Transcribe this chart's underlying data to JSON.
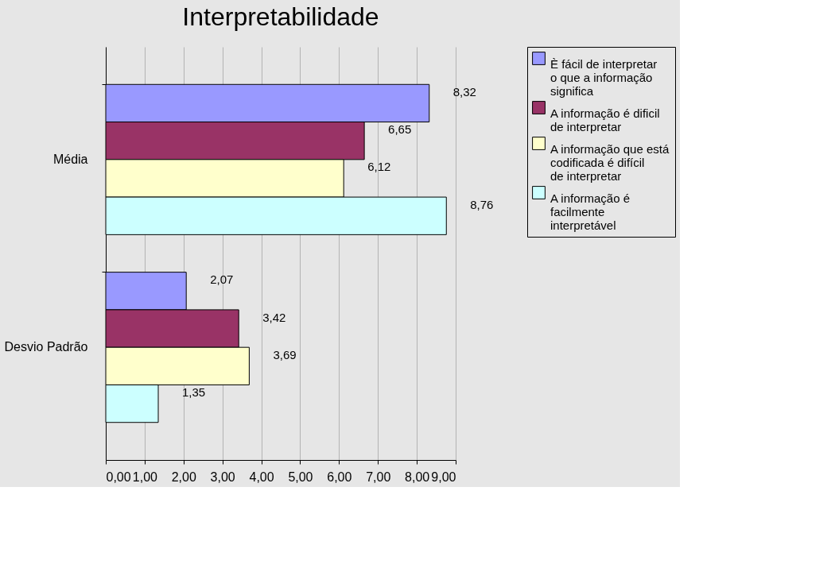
{
  "chart_data": {
    "type": "bar",
    "orientation": "horizontal",
    "title": "Interpretabilidade",
    "categories": [
      "Média",
      "Desvio Padrão"
    ],
    "series": [
      {
        "name": "È fácil de interpretar o que a informação significa",
        "color": "#9999ff",
        "values": [
          8.32,
          2.07
        ],
        "value_labels": [
          "8,32",
          "2,07"
        ]
      },
      {
        "name": "A informação é dificil de interpretar",
        "color": "#993366",
        "values": [
          6.65,
          3.42
        ],
        "value_labels": [
          "6,65",
          "3,42"
        ]
      },
      {
        "name": "A informação que está codificada é difícil de interpretar",
        "color": "#ffffcc",
        "values": [
          6.12,
          3.69
        ],
        "value_labels": [
          "6,12",
          "3,69"
        ]
      },
      {
        "name": "A informação é facilmente interpretável",
        "color": "#ccffff",
        "values": [
          8.76,
          1.35
        ],
        "value_labels": [
          "8,76",
          "1,35"
        ]
      }
    ],
    "xlim": [
      0,
      9
    ],
    "xticks": [
      {
        "value": 0,
        "label": "0,00"
      },
      {
        "value": 1,
        "label": "1,00"
      },
      {
        "value": 2,
        "label": "2,00"
      },
      {
        "value": 3,
        "label": "3,00"
      },
      {
        "value": 4,
        "label": "4,00"
      },
      {
        "value": 5,
        "label": "5,00"
      },
      {
        "value": 6,
        "label": "6,00"
      },
      {
        "value": 7,
        "label": "7,00"
      },
      {
        "value": 8,
        "label": "8,00"
      },
      {
        "value": 9,
        "label": "9,00"
      }
    ],
    "grid": "x",
    "legend": "right"
  }
}
